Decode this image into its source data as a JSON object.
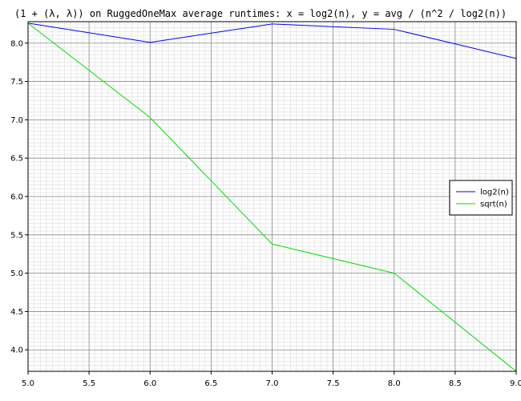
{
  "chart_data": {
    "type": "line",
    "title": "(1 + (λ, λ)) on RuggedOneMax average runtimes: x = log2(n), y = avg / (n^2 / log2(n))",
    "xlabel": "",
    "ylabel": "",
    "xlim": [
      5.0,
      9.0
    ],
    "ylim": [
      3.72,
      8.28
    ],
    "x_ticks": [
      "5.0",
      "5.5",
      "6.0",
      "6.5",
      "7.0",
      "7.5",
      "8.0",
      "8.5",
      "9.0"
    ],
    "y_ticks": [
      "4.0",
      "4.5",
      "5.0",
      "5.5",
      "6.0",
      "6.5",
      "7.0",
      "7.5",
      "8.0"
    ],
    "x_tick_values": [
      5.0,
      5.5,
      6.0,
      6.5,
      7.0,
      7.5,
      8.0,
      8.5,
      9.0
    ],
    "y_tick_values": [
      4.0,
      4.5,
      5.0,
      5.5,
      6.0,
      6.5,
      7.0,
      7.5,
      8.0
    ],
    "grid": true,
    "legend_position": "right",
    "series": [
      {
        "name": "log2(n)",
        "color": "#0000ff",
        "x": [
          5,
          6,
          7,
          8,
          9
        ],
        "y": [
          8.26,
          8.01,
          8.25,
          8.18,
          7.8
        ]
      },
      {
        "name": "sqrt(n)",
        "color": "#00e000",
        "x": [
          5,
          6,
          7,
          8,
          9
        ],
        "y": [
          8.26,
          7.03,
          5.38,
          5.0,
          3.72
        ]
      }
    ]
  }
}
